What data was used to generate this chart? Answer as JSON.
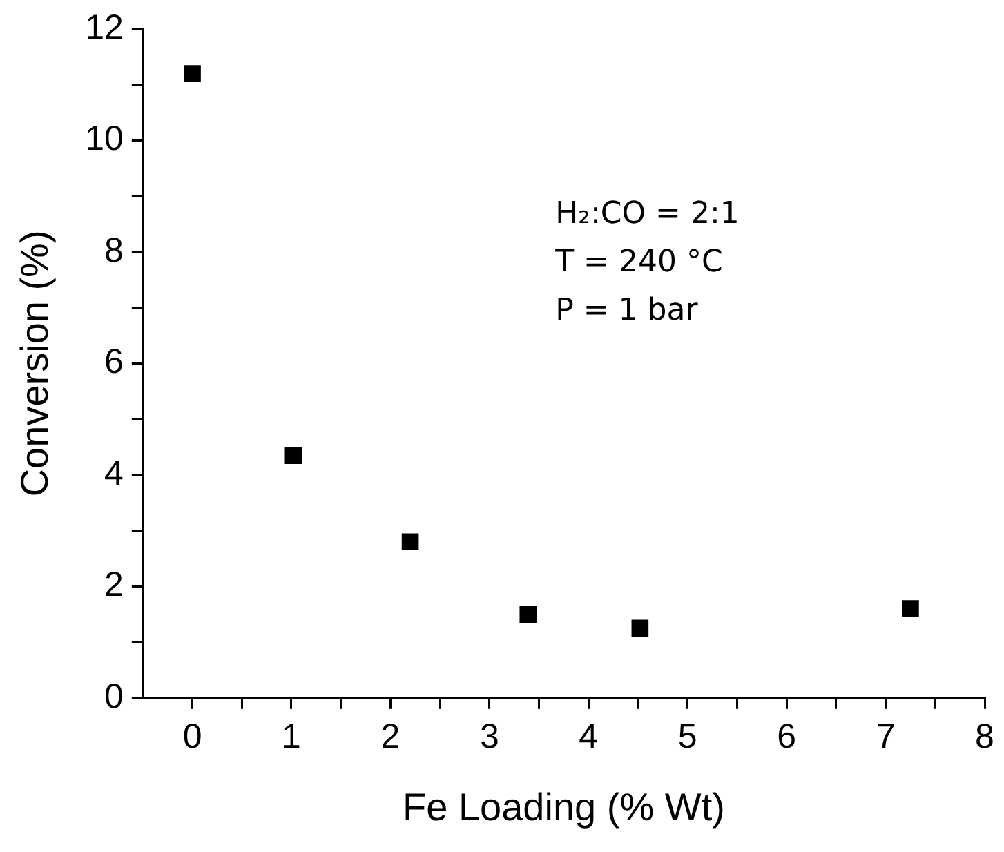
{
  "chart_data": {
    "type": "scatter",
    "xlabel": "Fe Loading (% Wt)",
    "ylabel": "Conversion (%)",
    "x": [
      0,
      1.02,
      2.2,
      3.39,
      4.52,
      7.25
    ],
    "series": [
      {
        "color": "#000000",
        "values": [
          11.2,
          4.35,
          2.8,
          1.5,
          1.25,
          1.6
        ]
      }
    ],
    "xlim": [
      -0.5,
      8
    ],
    "ylim": [
      0,
      12
    ],
    "xticks": [
      0,
      {
        "value": 0.5,
        "label": null
      },
      1,
      {
        "value": 1.5,
        "label": null
      },
      2,
      {
        "value": 2.5,
        "label": null
      },
      3,
      {
        "value": 3.5,
        "label": null
      },
      4,
      {
        "value": 4.5,
        "label": null
      },
      5,
      {
        "value": 5.5,
        "label": null
      },
      6,
      {
        "value": 6.5,
        "label": null
      },
      7,
      {
        "value": 7.5,
        "label": null
      },
      8
    ],
    "yticks": [
      0,
      {
        "value": 1,
        "label": null
      },
      2,
      {
        "value": 3,
        "label": null
      },
      4,
      {
        "value": 5,
        "label": null
      },
      6,
      {
        "value": 7,
        "label": null
      },
      8,
      {
        "value": 9,
        "label": null
      },
      10,
      {
        "value": 11,
        "label": null
      },
      12
    ],
    "annotations": [
      "H₂:CO = 2:1",
      "T = 240 °C",
      "P = 1 bar"
    ],
    "marker": "square",
    "grid": false,
    "legend": false
  }
}
